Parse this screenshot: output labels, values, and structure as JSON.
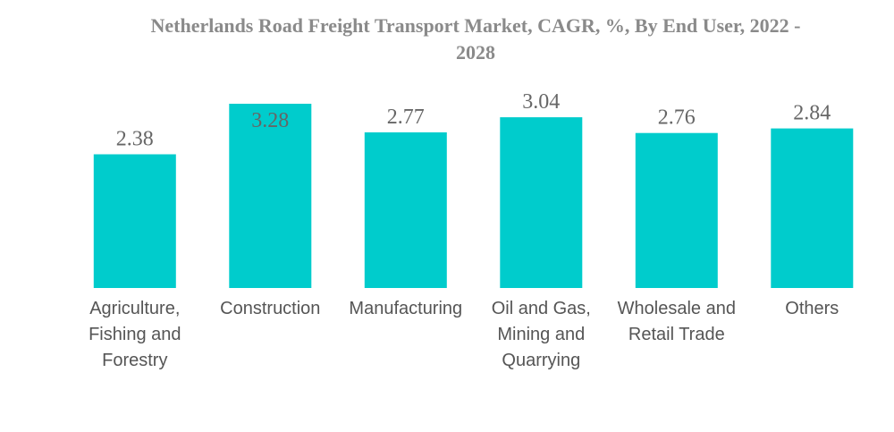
{
  "colors": {
    "bar": "#00cccc",
    "title": "#8a8a8a",
    "value_label": "#666666",
    "category_label": "#555555",
    "background": "#ffffff"
  },
  "chart_data": {
    "type": "bar",
    "title": "Netherlands Road Freight Transport Market, CAGR, %, By End User, 2022 - 2028",
    "title_lines": [
      "Netherlands Road Freight Transport Market, CAGR, %, By End User, 2022 -",
      "2028"
    ],
    "categories": [
      "Agriculture, Fishing and Forestry",
      "Construction",
      "Manufacturing",
      "Oil and Gas, Mining and Quarrying",
      "Wholesale and Retail Trade",
      "Others"
    ],
    "category_lines": [
      [
        "Agriculture,",
        "Fishing and",
        "Forestry"
      ],
      [
        "Construction"
      ],
      [
        "Manufacturing"
      ],
      [
        "Oil and Gas,",
        "Mining and",
        "Quarrying"
      ],
      [
        "Wholesale and",
        "Retail Trade"
      ],
      [
        "Others"
      ]
    ],
    "values": [
      2.38,
      3.28,
      2.77,
      3.04,
      2.76,
      2.84
    ],
    "value_labels": [
      "2.38",
      "3.28",
      "2.77",
      "3.04",
      "2.76",
      "2.84"
    ],
    "xlabel": "",
    "ylabel": "",
    "ylim": [
      0,
      3.28
    ],
    "grid": false,
    "legend": "none"
  }
}
